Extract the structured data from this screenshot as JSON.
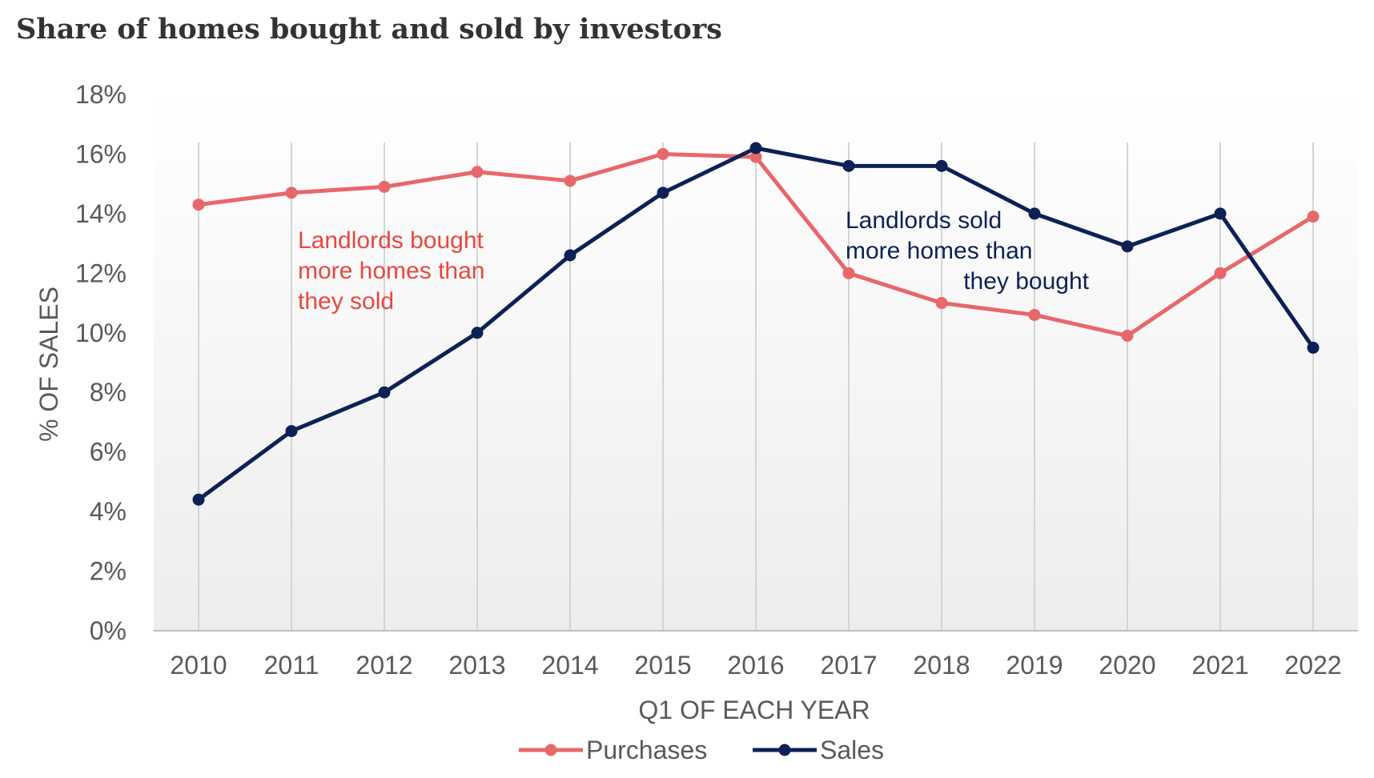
{
  "title": "Share of homes bought and sold by investors",
  "chart_data": {
    "type": "line",
    "x": [
      "2010",
      "2011",
      "2012",
      "2013",
      "2014",
      "2015",
      "2016",
      "2017",
      "2018",
      "2019",
      "2020",
      "2021",
      "2022"
    ],
    "xlabel": "Q1 OF EACH YEAR",
    "ylabel": "% OF SALES",
    "ylim": [
      0,
      18
    ],
    "yticks": [
      0,
      2,
      4,
      6,
      8,
      10,
      12,
      14,
      16,
      18
    ],
    "ytick_labels": [
      "0%",
      "2%",
      "4%",
      "6%",
      "8%",
      "10%",
      "12%",
      "14%",
      "16%",
      "18%"
    ],
    "grid": "vertical",
    "legend_position": "bottom",
    "series": [
      {
        "name": "Purchases",
        "color": "#e8676a",
        "values": [
          14.3,
          14.7,
          14.9,
          15.4,
          15.1,
          16.0,
          15.9,
          12.0,
          11.0,
          10.6,
          9.9,
          12.0,
          13.9
        ]
      },
      {
        "name": "Sales",
        "color": "#0d2157",
        "values": [
          4.4,
          6.7,
          8.0,
          10.0,
          12.6,
          14.7,
          16.2,
          15.6,
          15.6,
          14.0,
          12.9,
          14.0,
          9.5
        ]
      }
    ],
    "annotations": [
      {
        "lines": [
          "Landlords bought",
          "more homes than",
          "they sold"
        ],
        "color": "#e8473f"
      },
      {
        "lines": [
          "Landlords sold",
          "more homes than",
          "they bought"
        ],
        "color": "#0d2157"
      }
    ]
  }
}
